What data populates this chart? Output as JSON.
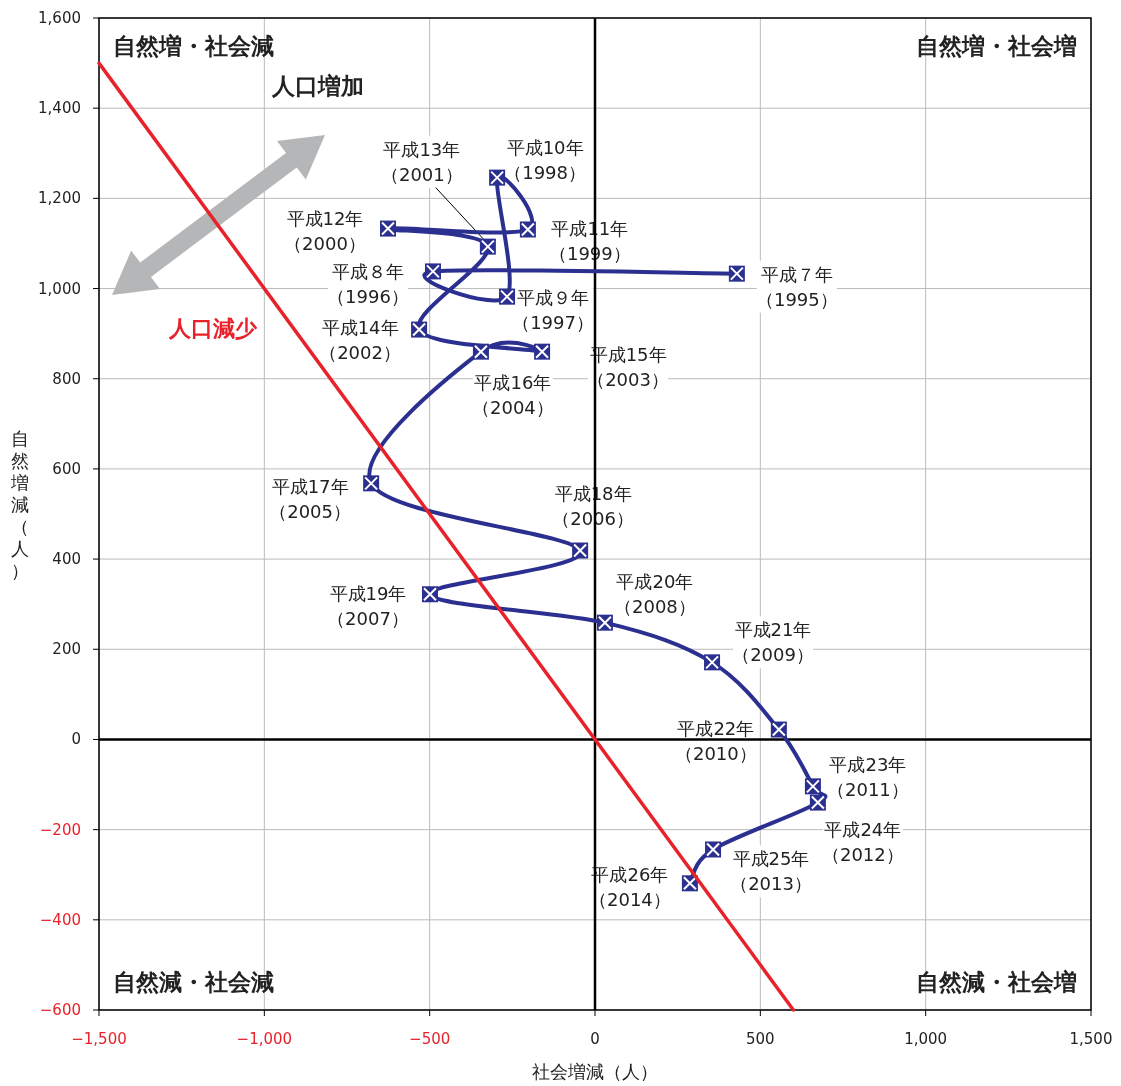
{
  "chart_data": {
    "type": "line",
    "xlabel": "社会増減（人）",
    "ylabel": "自然増減（人）",
    "xlim": [
      -1500,
      1500
    ],
    "ylim": [
      -600,
      1600
    ],
    "xticks": [
      {
        "value": -1500,
        "label": "−1,500"
      },
      {
        "value": -1000,
        "label": "−1,000"
      },
      {
        "value": -500,
        "label": "−500"
      },
      0,
      500,
      {
        "value": 1000,
        "label": "1,000"
      },
      {
        "value": 1500,
        "label": "1,500"
      }
    ],
    "yticks": [
      {
        "value": -600,
        "label": "−600"
      },
      {
        "value": -400,
        "label": "−400"
      },
      {
        "value": -200,
        "label": "−200"
      },
      0,
      200,
      400,
      600,
      800,
      {
        "value": 1000,
        "label": "1,000"
      },
      {
        "value": 1200,
        "label": "1,200"
      },
      {
        "value": 1400,
        "label": "1,400"
      },
      {
        "value": 1600,
        "label": "1,600"
      }
    ],
    "grid": true,
    "series": [
      {
        "color": "#2b2f8f",
        "marker": "square",
        "line_style": "solid",
        "x": [
          429,
          -490,
          -266,
          -296,
          -203,
          -626,
          -324,
          -532,
          -160,
          -345,
          -677,
          -45,
          -499,
          30,
          354,
          556,
          659,
          674,
          357,
          287
        ],
        "values": [
          1033,
          1038,
          982,
          1246,
          1131,
          1133,
          1093,
          909,
          860,
          860,
          568,
          419,
          322,
          259,
          171,
          22,
          -104,
          -140,
          -244,
          -319
        ]
      },
      {
        "name": "人口減少",
        "color": "#e8222a",
        "marker": "none",
        "line_style": "solid",
        "x": [
          -1500,
          600
        ],
        "values": [
          1500,
          -600
        ]
      }
    ],
    "annotations": [
      "自然増・社会減",
      "自然増・社会増",
      "自然減・社会減",
      "自然減・社会増",
      "人口増加",
      {
        "text": "平成７年（1995）",
        "x": 429,
        "y": 1033
      },
      {
        "text": "平成８年（1996）",
        "x": -490,
        "y": 1038
      },
      {
        "text": "平成９年（1997）",
        "x": -266,
        "y": 982
      },
      {
        "text": "平成10年（1998）",
        "x": -296,
        "y": 1246
      },
      {
        "text": "平成11年（1999）",
        "x": -203,
        "y": 1131
      },
      {
        "text": "平成12年（2000）",
        "x": -626,
        "y": 1133
      },
      {
        "text": "平成13年（2001）",
        "x": -324,
        "y": 1093
      },
      {
        "text": "平成14年（2002）",
        "x": -532,
        "y": 909
      },
      {
        "text": "平成15年（2003）",
        "x": -160,
        "y": 860
      },
      {
        "text": "平成16年（2004）",
        "x": -345,
        "y": 860
      },
      {
        "text": "平成17年（2005）",
        "x": -677,
        "y": 568
      },
      {
        "text": "平成18年（2006）",
        "x": -45,
        "y": 419
      },
      {
        "text": "平成19年（2007）",
        "x": -499,
        "y": 322
      },
      {
        "text": "平成20年（2008）",
        "x": 30,
        "y": 259
      },
      {
        "text": "平成21年（2009）",
        "x": 354,
        "y": 171
      },
      {
        "text": "平成22年（2010）",
        "x": 556,
        "y": 22
      },
      {
        "text": "平成23年（2011）",
        "x": 659,
        "y": -104
      },
      {
        "text": "平成24年（2012）",
        "x": 674,
        "y": -140
      },
      {
        "text": "平成25年（2013）",
        "x": 357,
        "y": -244
      },
      {
        "text": "平成26年（2014）",
        "x": 287,
        "y": -319
      }
    ]
  }
}
